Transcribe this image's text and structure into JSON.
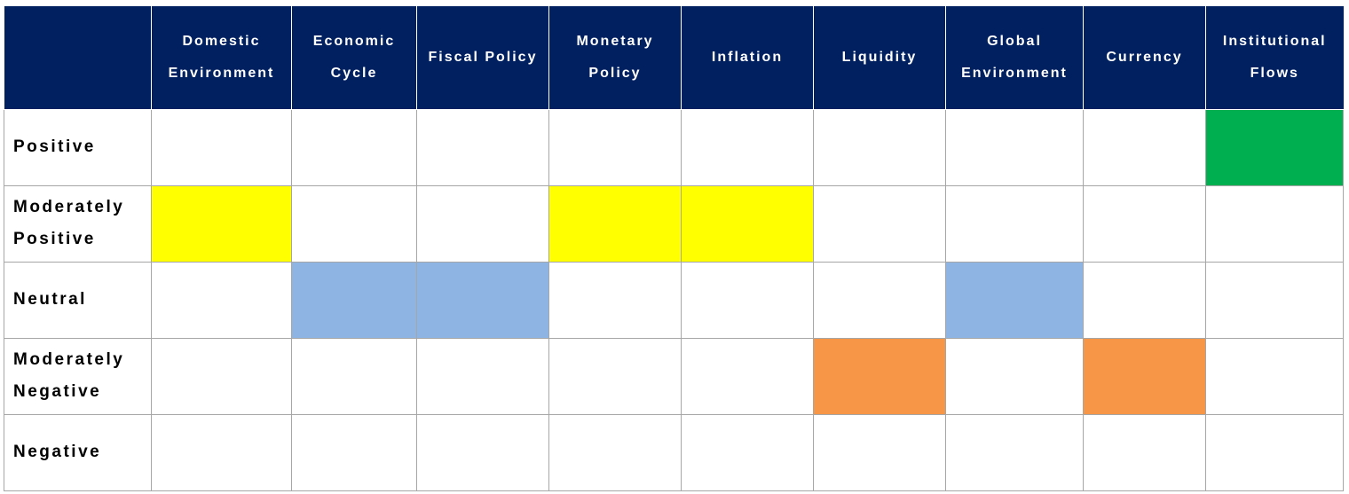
{
  "chart_data": {
    "type": "heatmap",
    "columns": [
      "Domestic Environment",
      "Economic Cycle",
      "Fiscal Policy",
      "Monetary Policy",
      "Inflation",
      "Liquidity",
      "Global Environment",
      "Currency",
      "Institutional Flows"
    ],
    "rows": [
      {
        "label": "Positive",
        "color": "#00B050"
      },
      {
        "label": "Moderately Positive",
        "color": "#FFFF00"
      },
      {
        "label": "Neutral",
        "color": "#8EB4E3"
      },
      {
        "label": "Moderately Negative",
        "color": "#F79646"
      },
      {
        "label": "Negative",
        "color": "#FF0000"
      }
    ],
    "assessments": {
      "Domestic Environment": "Moderately Positive",
      "Economic Cycle": "Neutral",
      "Fiscal Policy": "Neutral",
      "Monetary Policy": "Moderately Positive",
      "Inflation": "Moderately Positive",
      "Liquidity": "Moderately Negative",
      "Global Environment": "Neutral",
      "Currency": "Moderately Negative",
      "Institutional Flows": "Positive"
    }
  },
  "colors": {
    "header_bg": "#002060",
    "header_text": "#FFFFFF",
    "grid_line": "#A6A6A6"
  }
}
